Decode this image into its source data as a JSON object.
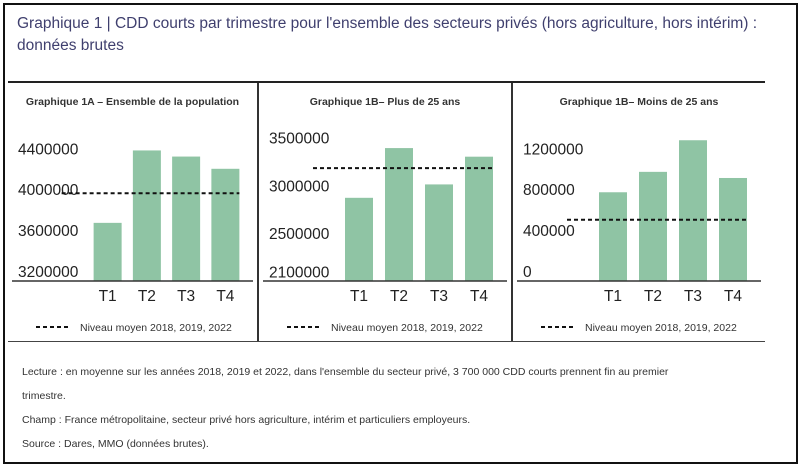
{
  "title": "Graphique 1 | CDD courts par trimestre pour l'ensemble des secteurs privés (hors agriculture, hors intérim) : données brutes",
  "colors": {
    "bar": "#8fc4a4",
    "axis": "#333333",
    "avg_line": "#111111",
    "title": "#3f3f6e"
  },
  "chart_data": [
    {
      "type": "bar",
      "title": "Graphique 1A – Ensemble de la population",
      "categories": [
        "T1",
        "T2",
        "T3",
        "T4"
      ],
      "values": [
        3670000,
        4380000,
        4320000,
        4200000
      ],
      "average": 3960000,
      "ylim": [
        3100000,
        4600000
      ],
      "yticks": [
        3200000,
        3600000,
        4000000,
        4400000
      ],
      "ytick_labels": [
        "3200000",
        "3600000",
        "4000000",
        "4400000"
      ],
      "legend": "Niveau moyen 2018, 2019, 2022"
    },
    {
      "type": "bar",
      "title": "Graphique 1B– Plus de 25 ans",
      "categories": [
        "T1",
        "T2",
        "T3",
        "T4"
      ],
      "values": [
        2870000,
        3390000,
        3010000,
        3300000
      ],
      "average": 3180000,
      "ylim": [
        2000000,
        3600000
      ],
      "yticks": [
        2100000,
        2500000,
        3000000,
        3500000
      ],
      "ytick_labels": [
        "2100000",
        "2500000",
        "3000000",
        "3500000"
      ],
      "legend": "Niveau moyen 2018, 2019, 2022"
    },
    {
      "type": "bar",
      "title": "Graphique 1B– Moins de 25 ans",
      "categories": [
        "T1",
        "T2",
        "T3",
        "T4"
      ],
      "values": [
        770000,
        970000,
        1280000,
        910000
      ],
      "average": 500000,
      "ylim": [
        -100000,
        1400000
      ],
      "yticks": [
        0,
        400000,
        800000,
        1200000
      ],
      "ytick_labels": [
        "0",
        "400000",
        "800000",
        "1200000"
      ],
      "legend": "Niveau moyen 2018, 2019, 2022"
    }
  ],
  "notes": {
    "lecture": "Lecture : en moyenne sur les années 2018, 2019 et 2022, dans l'ensemble du secteur privé, 3 700 000 CDD courts prennent fin au premier",
    "lecture_cont": "trimestre.",
    "champ": "Champ : France métropolitaine, secteur privé hors agriculture, intérim et particuliers employeurs.",
    "source": "Source : Dares, MMO (données brutes)."
  }
}
